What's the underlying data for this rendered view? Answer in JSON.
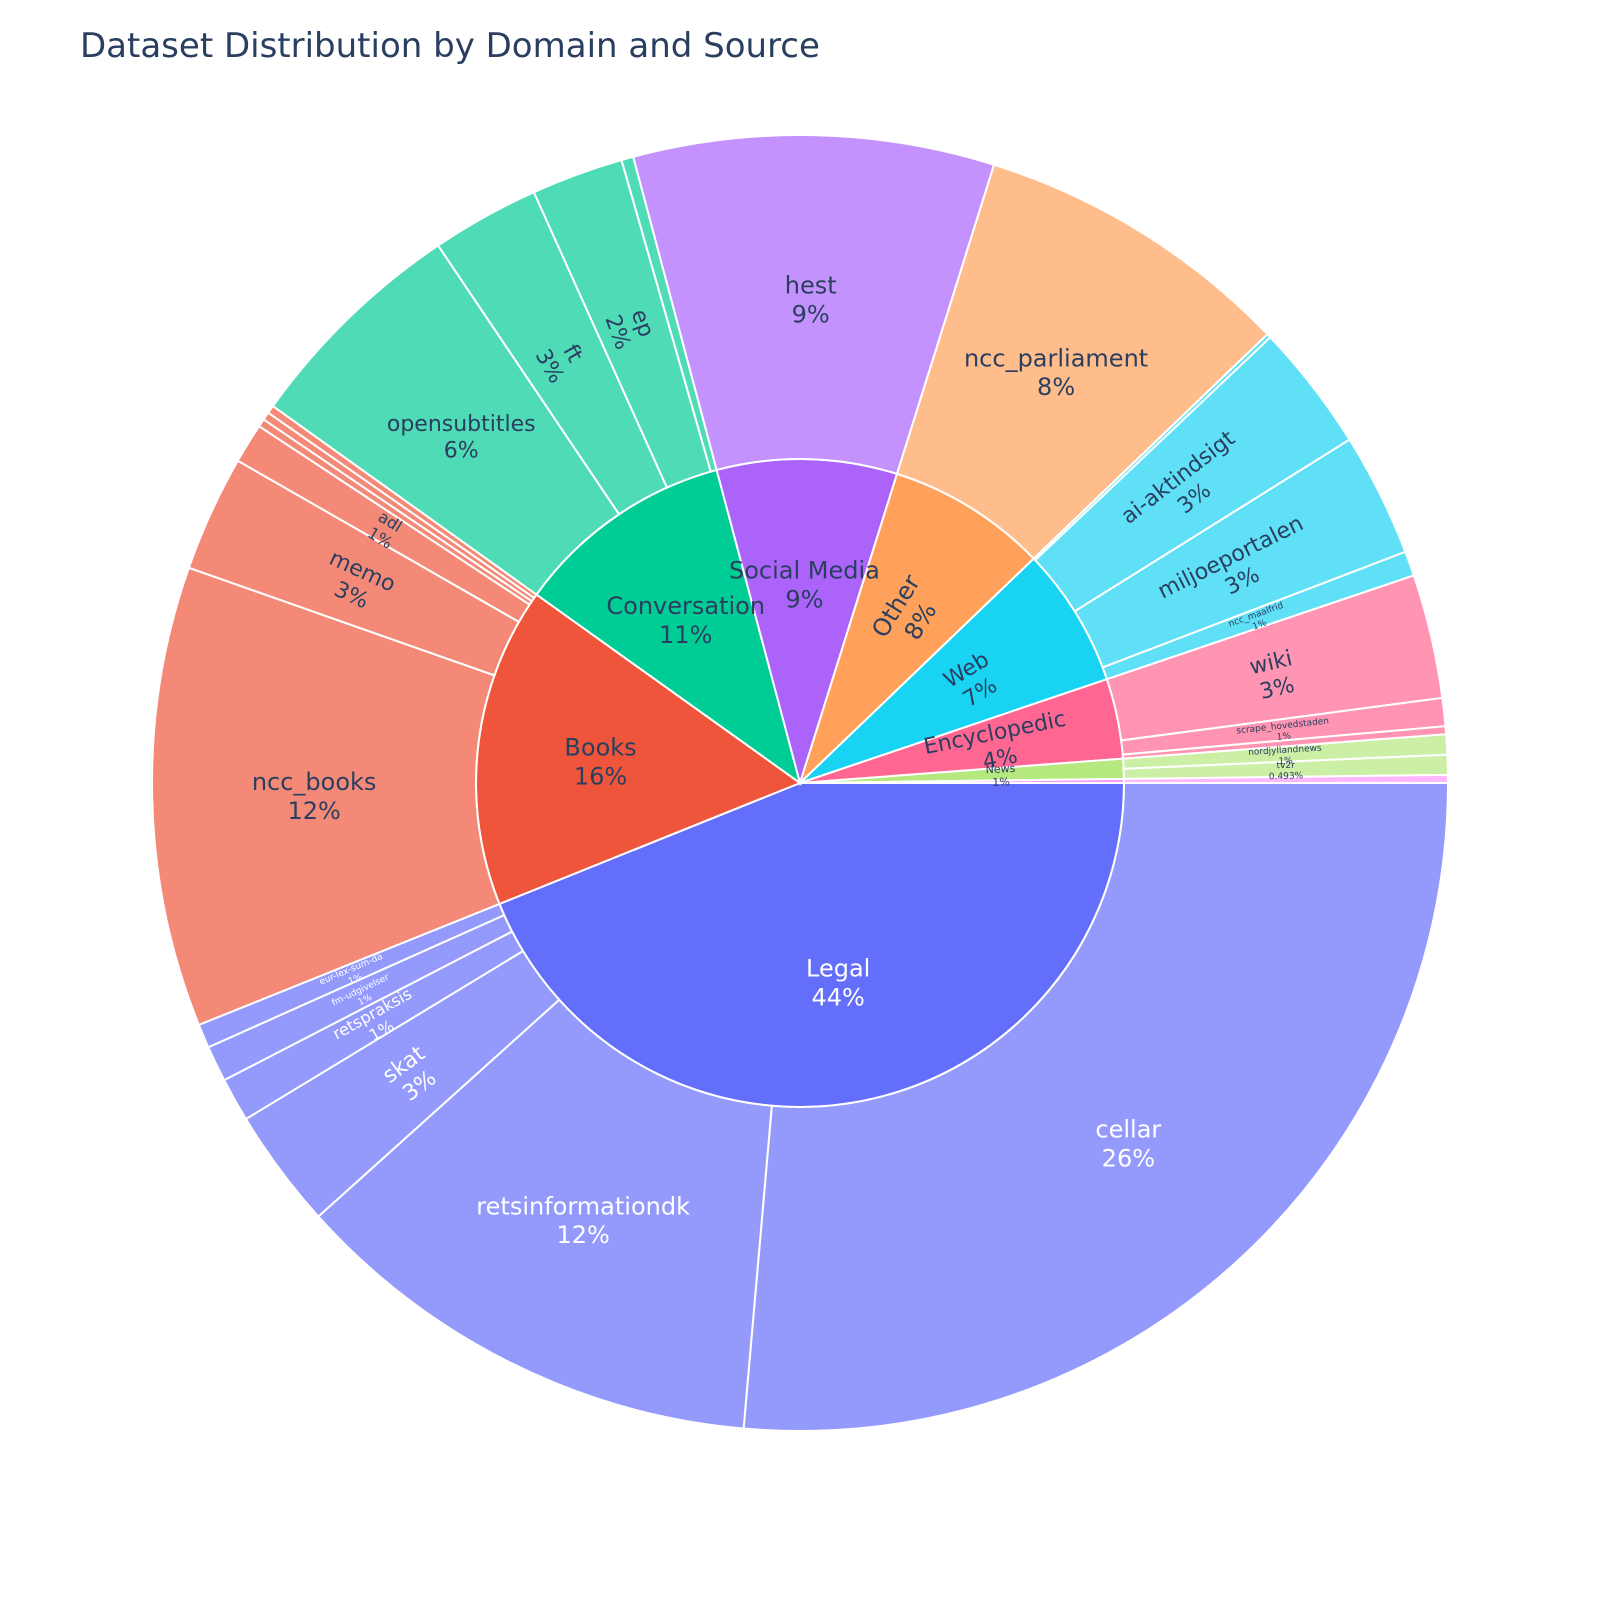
{
  "chart_data": {
    "type": "sunburst",
    "title": "Dataset Distribution by Domain and Source",
    "domains": [
      {
        "label": "Legal",
        "percent_label": "44%",
        "value": 44.0,
        "color": "#636efa",
        "child_color": "#939afc",
        "dark_text": false,
        "children": [
          {
            "label": "cellar",
            "percent_label": "26%",
            "value": 26.5
          },
          {
            "label": "retsinformationdk",
            "percent_label": "12%",
            "value": 12.0
          },
          {
            "label": "skat",
            "percent_label": "3%",
            "value": 3.0
          },
          {
            "label": "retspraksis",
            "percent_label": "1%",
            "value": 1.1
          },
          {
            "label": "fm-udgivelser",
            "percent_label": "1%",
            "value": 0.9
          },
          {
            "label": "eur-lex-sum-da",
            "percent_label": "1%",
            "value": 0.6
          }
        ]
      },
      {
        "label": "Books",
        "percent_label": "16%",
        "value": 16.0,
        "color": "#ef553b",
        "child_color": "#f38976",
        "dark_text": true,
        "children": [
          {
            "label": "ncc_books",
            "percent_label": "12%",
            "value": 11.5
          },
          {
            "label": "memo",
            "percent_label": "3%",
            "value": 2.9
          },
          {
            "label": "adl",
            "percent_label": "1%",
            "value": 1.0
          },
          {
            "label": "",
            "percent_label": "",
            "value": 0.2
          },
          {
            "label": "",
            "percent_label": "",
            "value": 0.2
          },
          {
            "label": "",
            "percent_label": "",
            "value": 0.2
          }
        ]
      },
      {
        "label": "Conversation",
        "percent_label": "11%",
        "value": 11.0,
        "color": "#00cc96",
        "child_color": "#4fdbb5",
        "dark_text": true,
        "children": [
          {
            "label": "opensubtitles",
            "percent_label": "6%",
            "value": 5.7
          },
          {
            "label": "ft",
            "percent_label": "3%",
            "value": 2.7
          },
          {
            "label": "ep",
            "percent_label": "2%",
            "value": 2.3
          },
          {
            "label": "",
            "percent_label": "",
            "value": 0.3
          }
        ]
      },
      {
        "label": "Social Media",
        "percent_label": "9%",
        "value": 9.0,
        "color": "#ab63fa",
        "child_color": "#c492fc",
        "dark_text": true,
        "children": [
          {
            "label": "hest",
            "percent_label": "9%",
            "value": 9.0
          }
        ]
      },
      {
        "label": "Other",
        "percent_label": "8%",
        "value": 8.0,
        "color": "#ffa15a",
        "child_color": "#ffbd8c",
        "dark_text": true,
        "children": [
          {
            "label": "ncc_parliament",
            "percent_label": "8%",
            "value": 8.0
          }
        ]
      },
      {
        "label": "Web",
        "percent_label": "7%",
        "value": 7.0,
        "color": "#19d3f3",
        "child_color": "#5fe0f7",
        "dark_text": true,
        "children": [
          {
            "label": "",
            "percent_label": "",
            "value": 0.1
          },
          {
            "label": "ai-aktindsigt",
            "percent_label": "3%",
            "value": 3.1
          },
          {
            "label": "miljoeportalen",
            "percent_label": "3%",
            "value": 3.0
          },
          {
            "label": "ncc_maalfrid",
            "percent_label": "1%",
            "value": 0.6
          }
        ]
      },
      {
        "label": "Encyclopedic",
        "percent_label": "4%",
        "value": 4.0,
        "color": "#ff6692",
        "child_color": "#ff94b3",
        "dark_text": true,
        "children": [
          {
            "label": "wiki",
            "percent_label": "3%",
            "value": 3.1
          },
          {
            "label": "scrape_hovedstaden",
            "percent_label": "1%",
            "value": 0.7
          },
          {
            "label": "",
            "percent_label": "",
            "value": 0.2
          }
        ]
      },
      {
        "label": "News",
        "percent_label": "1%",
        "value": 1.0,
        "color": "#b6e880",
        "child_color": "#ccefa6",
        "dark_text": true,
        "children": [
          {
            "label": "nordjyllandnews",
            "percent_label": "1%",
            "value": 0.5
          },
          {
            "label": "tv2r",
            "percent_label": "0.493%",
            "value": 0.493
          }
        ]
      },
      {
        "label": "",
        "percent_label": "",
        "value": 0.2,
        "color": "#ff97ff",
        "child_color": "#ffb6ff",
        "dark_text": true,
        "children": [
          {
            "label": "",
            "percent_label": "",
            "value": 0.2
          }
        ]
      }
    ]
  }
}
